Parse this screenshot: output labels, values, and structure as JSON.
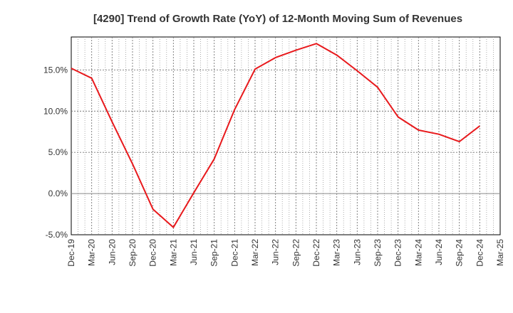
{
  "chart_data": {
    "type": "line",
    "title": "[4290]  Trend of Growth Rate (YoY) of 12-Month Moving Sum of Revenues",
    "xlabel": "",
    "ylabel": "",
    "x_tick_labels": [
      "Dec-19",
      "Mar-20",
      "Jun-20",
      "Sep-20",
      "Dec-20",
      "Mar-21",
      "Jun-21",
      "Sep-21",
      "Dec-21",
      "Mar-22",
      "Jun-22",
      "Sep-22",
      "Dec-22",
      "Mar-23",
      "Jun-23",
      "Sep-23",
      "Dec-23",
      "Mar-24",
      "Jun-24",
      "Sep-24",
      "Dec-24",
      "Mar-25"
    ],
    "y_tick_labels": [
      "15.0%",
      "10.0%",
      "5.0%",
      "0.0%",
      "-5.0%"
    ],
    "y_ticks": [
      15,
      10,
      5,
      0,
      -5
    ],
    "ylim": [
      -5,
      19
    ],
    "grid": true,
    "line_color": "#e8191c",
    "series": [
      {
        "x": [
          "Dec-19",
          "Mar-20",
          "Jun-20",
          "Sep-20",
          "Dec-20",
          "Mar-21",
          "Jun-21",
          "Sep-21",
          "Dec-21",
          "Mar-22",
          "Jun-22",
          "Sep-22",
          "Dec-22",
          "Mar-23",
          "Jun-23",
          "Sep-23",
          "Dec-23",
          "Mar-24",
          "Jun-24",
          "Sep-24",
          "Dec-24"
        ],
        "values": [
          15.2,
          14.0,
          8.7,
          3.6,
          -1.9,
          -4.1,
          0.1,
          4.2,
          10.2,
          15.1,
          16.5,
          17.4,
          18.2,
          16.8,
          14.9,
          12.9,
          9.3,
          7.7,
          7.2,
          6.3,
          8.2
        ]
      }
    ]
  }
}
